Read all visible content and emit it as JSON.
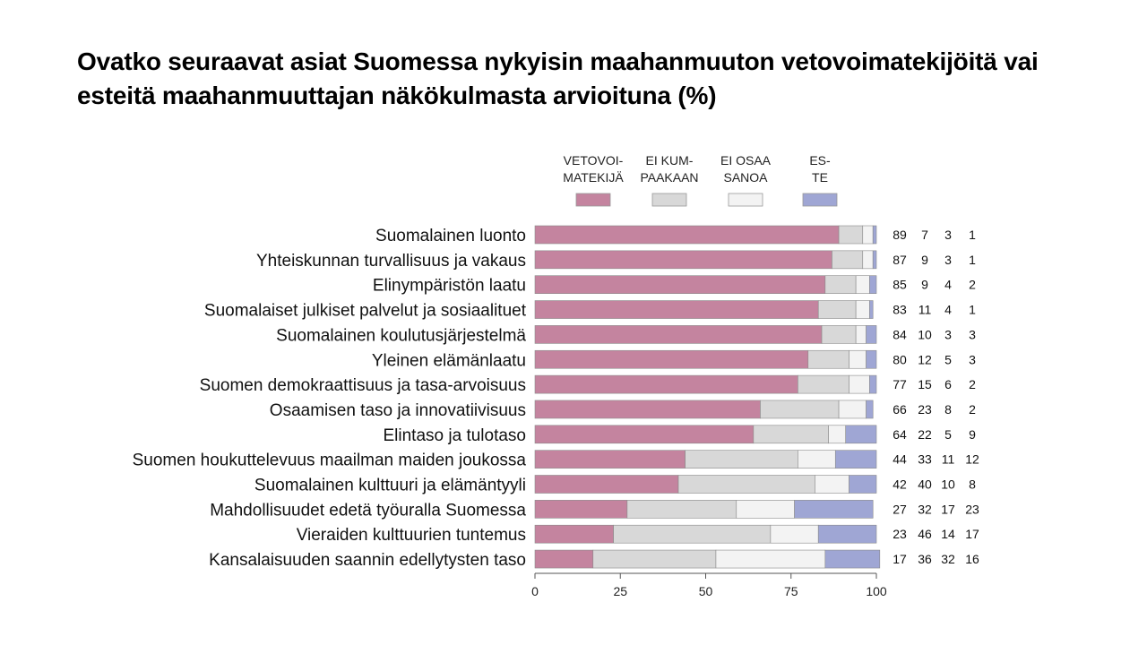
{
  "slide": {
    "title": "Ovatko seuraavat asiat Suomessa nykyisin maahanmuuton vetovoimatekijöitä vai esteitä maahanmuuttajan näkökulmasta arvioituna (%)"
  },
  "chart_data": {
    "type": "bar",
    "orientation": "horizontal",
    "stacked": true,
    "title": "",
    "xlabel": "",
    "ylabel": "",
    "xlim": [
      0,
      100
    ],
    "x_ticks": [
      "0",
      "25",
      "50",
      "75",
      "100"
    ],
    "grid": false,
    "legend_placement": "top",
    "legend": [
      {
        "lines": [
          "VETOVOI-",
          "MATEKIJÄ"
        ],
        "color": "#c4849f"
      },
      {
        "lines": [
          "EI KUM-",
          "PAAKAAN"
        ],
        "color": "#d8d8d8"
      },
      {
        "lines": [
          "EI OSAA",
          "SANOA"
        ],
        "color": "#f3f3f3"
      },
      {
        "lines": [
          "ES-",
          "TE"
        ],
        "color": "#9fa6d4"
      }
    ],
    "categories": [
      "Suomalainen luonto",
      "Yhteiskunnan turvallisuus ja vakaus",
      "Elinympäristön laatu",
      "Suomalaiset julkiset palvelut ja sosiaalituet",
      "Suomalainen koulutusjärjestelmä",
      "Yleinen elämänlaatu",
      "Suomen demokraattisuus ja tasa-arvoisuus",
      "Osaamisen taso ja innovatiivisuus",
      "Elintaso ja tulotaso",
      "Suomen houkuttelevuus maailman maiden joukossa",
      "Suomalainen kulttuuri ja elämäntyyli",
      "Mahdollisuudet edetä työuralla Suomessa",
      "Vieraiden kulttuurien tuntemus",
      "Kansalaisuuden saannin edellytysten taso"
    ],
    "series": [
      {
        "name": "VETOVOIMATEKIJÄ",
        "color": "#c4849f",
        "values": [
          89,
          87,
          85,
          83,
          84,
          80,
          77,
          66,
          64,
          44,
          42,
          27,
          23,
          17
        ]
      },
      {
        "name": "EI KUMPAAKAAN",
        "color": "#d8d8d8",
        "values": [
          7,
          9,
          9,
          11,
          10,
          12,
          15,
          23,
          22,
          33,
          40,
          32,
          46,
          36
        ]
      },
      {
        "name": "EI OSAA SANOA",
        "color": "#f3f3f3",
        "values": [
          3,
          3,
          4,
          4,
          3,
          5,
          6,
          8,
          5,
          11,
          10,
          17,
          14,
          32
        ]
      },
      {
        "name": "ESTE",
        "color": "#9fa6d4",
        "values": [
          1,
          1,
          2,
          1,
          3,
          3,
          2,
          2,
          9,
          12,
          8,
          23,
          17,
          16
        ]
      }
    ]
  }
}
